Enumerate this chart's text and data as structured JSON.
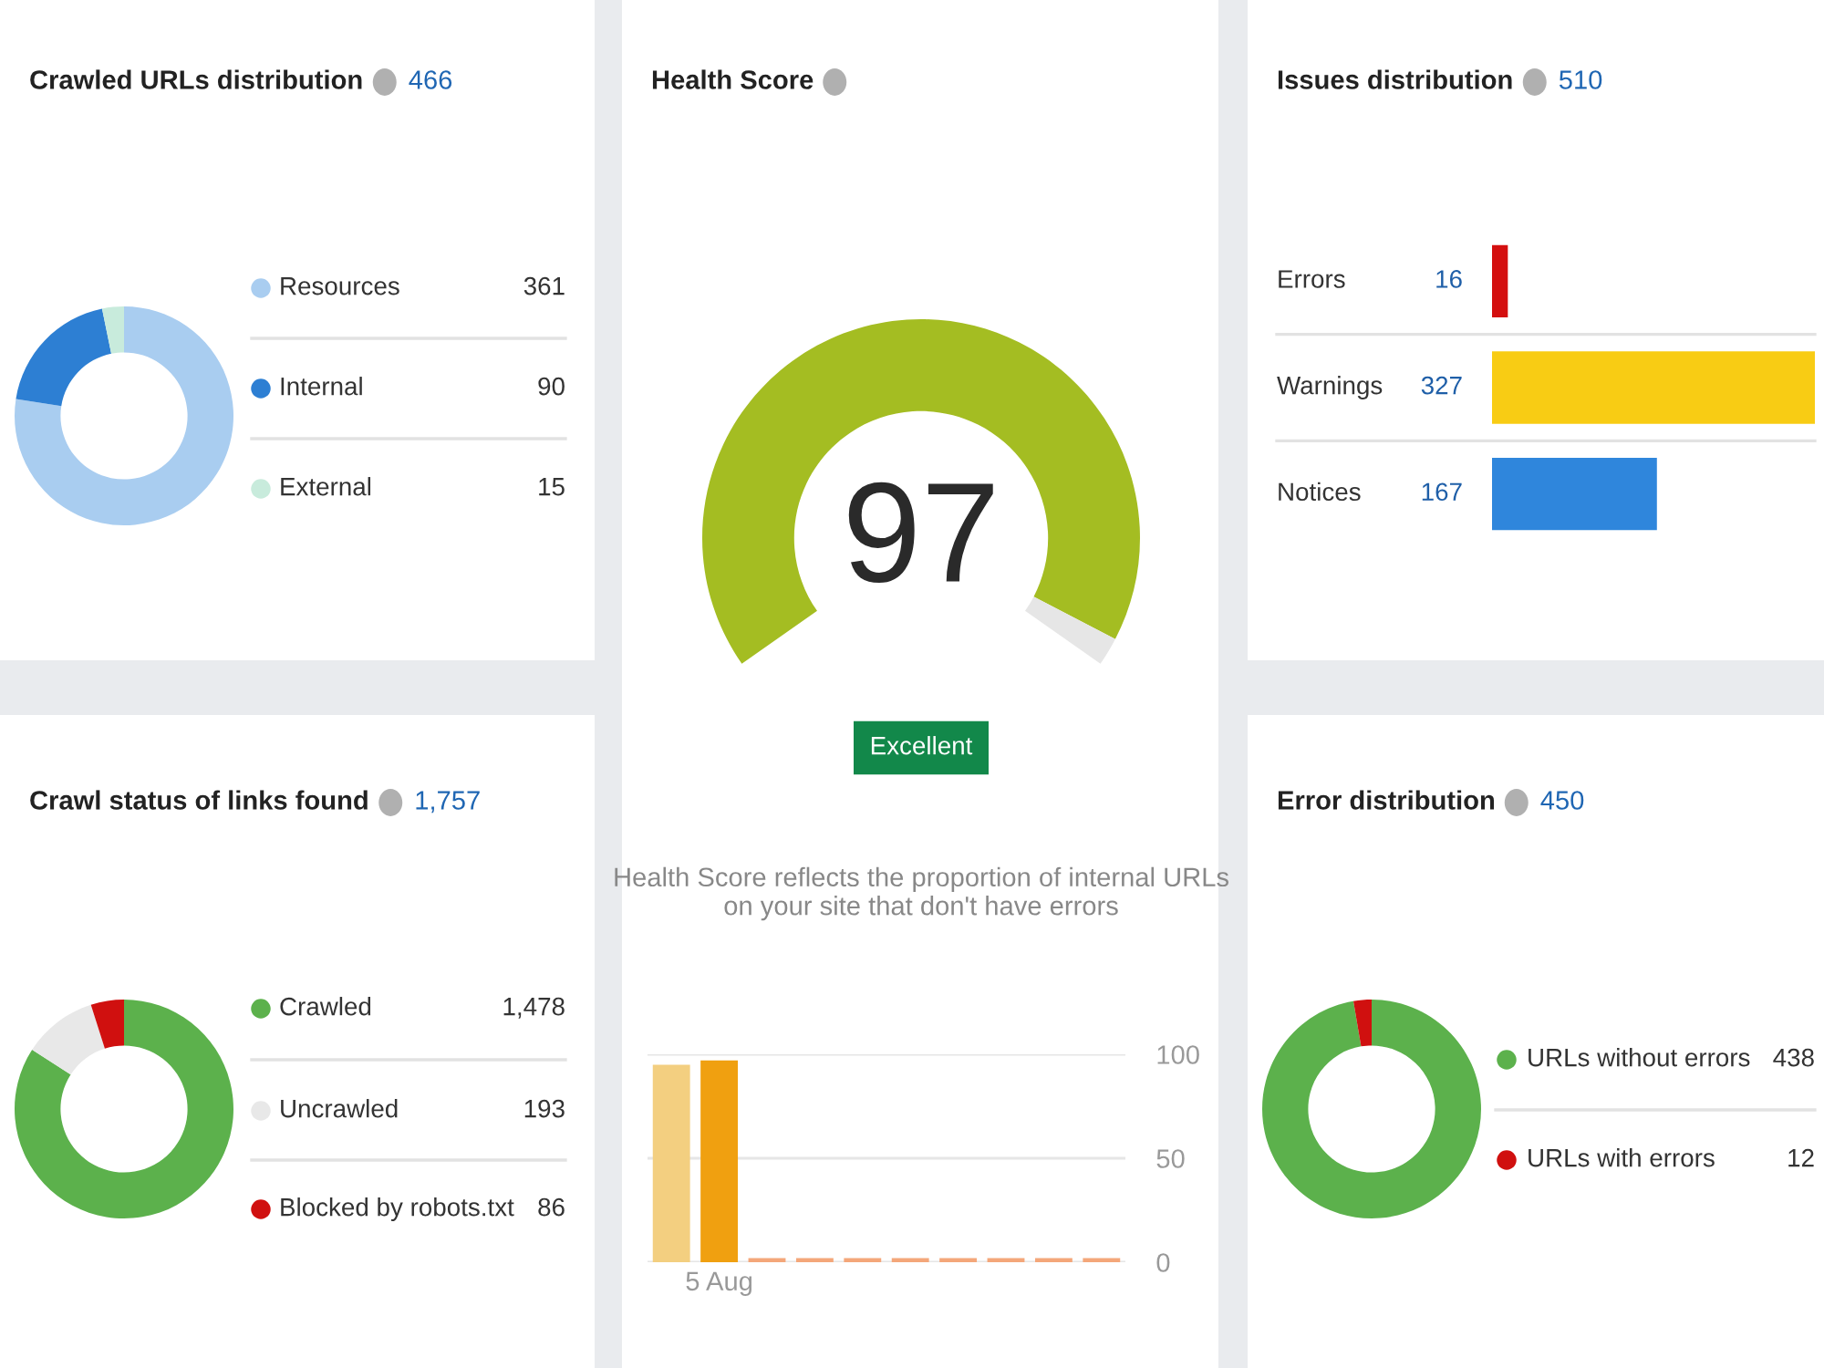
{
  "chart_data": [
    {
      "type": "donut",
      "title": "Crawled URLs distribution",
      "subtitle": "466",
      "categories": [
        "Resources",
        "Internal",
        "External"
      ],
      "values": [
        361,
        90,
        15
      ],
      "colors": [
        "#a9cdf0",
        "#2d7fd3",
        "#c8ebdc"
      ],
      "data_labels": true,
      "legend": "right"
    },
    {
      "type": "donut",
      "title": "Health Score",
      "categories": [
        null,
        null
      ],
      "values": [
        97,
        3
      ],
      "colors": [
        "#a4bd22",
        "#e6e6e6"
      ],
      "annotations": [
        "97",
        "Excellent",
        "Health Score reflects the proportion of internal URLs on your site that don't have errors"
      ]
    },
    {
      "type": "bar",
      "orientation": "horizontal",
      "title": "Issues distribution",
      "subtitle": "510",
      "categories": [
        "Errors",
        "Warnings",
        "Notices"
      ],
      "values": [
        16,
        327,
        167
      ],
      "colors": [
        "#d40f0f",
        "#f8cc14",
        "#2f86dc"
      ],
      "data_labels": true
    },
    {
      "type": "donut",
      "title": "Crawl status of links found",
      "subtitle": "1,757",
      "categories": [
        "Crawled",
        "Uncrawled",
        "Blocked by robots.txt"
      ],
      "values": [
        1478,
        193,
        86
      ],
      "colors": [
        "#5cb14c",
        "#e8e8e8",
        "#d0100f"
      ],
      "value_labels": [
        "1,478",
        "193",
        "86"
      ],
      "legend": "right"
    },
    {
      "type": "bar",
      "categories": [
        null,
        "5 Aug",
        null,
        null,
        null,
        null,
        null,
        null,
        null,
        null
      ],
      "values": [
        95,
        97,
        2,
        2,
        2,
        2,
        2,
        2,
        2,
        2
      ],
      "colors": [
        "#f3cf80",
        "#f0a010",
        "#f4a77a",
        "#f4a77a",
        "#f4a77a",
        "#f4a77a",
        "#f4a77a",
        "#f4a77a",
        "#f4a77a",
        "#f4a77a"
      ],
      "ylim": [
        0,
        100
      ],
      "yticks": [
        0,
        50,
        100
      ],
      "grid": "y"
    },
    {
      "type": "donut",
      "title": "Error distribution",
      "subtitle": "450",
      "categories": [
        "URLs without errors",
        "URLs with errors"
      ],
      "values": [
        438,
        12
      ],
      "colors": [
        "#5cb14c",
        "#d0100f"
      ],
      "data_labels": true,
      "legend": "right"
    }
  ]
}
